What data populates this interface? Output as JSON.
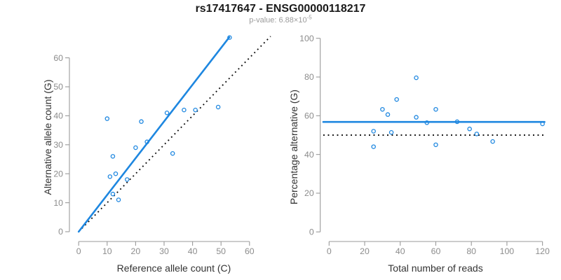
{
  "header": {
    "title": "rs17417647 - ENSG00000118217",
    "p_value_prefix": "p-value: ",
    "p_value_mantissa": "6.88×10",
    "p_value_exponent": "-5"
  },
  "colors": {
    "accent_blue": "#1E87E0",
    "dotted_black": "#111111",
    "axis_line": "#9A9A9A",
    "tick_label": "#8C8C8C",
    "axis_title": "#333333",
    "title_text": "#1A1A1A",
    "subtitle_text": "#9B9B9B",
    "background": "#FFFFFF"
  },
  "chart_data": [
    {
      "type": "scatter",
      "name": "allele-count-scatter",
      "xlabel": "Reference allele count (C)",
      "ylabel": "Alternative allele count (G)",
      "xlim": [
        0,
        60
      ],
      "ylim": [
        0,
        60
      ],
      "xticks": [
        0,
        10,
        20,
        30,
        40,
        50,
        60
      ],
      "yticks": [
        0,
        10,
        20,
        30,
        40,
        50,
        60
      ],
      "grid": false,
      "legend": "none",
      "points": [
        [
          10,
          39
        ],
        [
          11,
          19
        ],
        [
          12,
          13
        ],
        [
          12,
          26
        ],
        [
          13,
          20
        ],
        [
          14,
          11
        ],
        [
          17,
          18
        ],
        [
          20,
          29
        ],
        [
          22,
          38
        ],
        [
          24,
          31
        ],
        [
          31,
          41
        ],
        [
          33,
          27
        ],
        [
          37,
          42
        ],
        [
          41,
          42
        ],
        [
          49,
          43
        ],
        [
          53,
          67
        ]
      ],
      "lines": [
        {
          "name": "identity-line",
          "style": "dotted",
          "color_key": "dotted_black",
          "x1": 0,
          "y1": 0,
          "x2": 67.4,
          "y2": 67.4
        },
        {
          "name": "fit-line",
          "style": "solid",
          "color_key": "accent_blue",
          "x1": 0,
          "y1": 0,
          "x2": 52.9,
          "y2": 67.1
        }
      ]
    },
    {
      "type": "scatter",
      "name": "percentage-scatter",
      "xlabel": "Total number of reads",
      "ylabel": "Percentage alternative (G)",
      "xlim": [
        0,
        120
      ],
      "ylim": [
        0,
        100
      ],
      "xticks": [
        0,
        20,
        40,
        60,
        80,
        100,
        120
      ],
      "yticks": [
        0,
        20,
        40,
        60,
        80,
        100
      ],
      "grid": false,
      "legend": "none",
      "points": [
        [
          25,
          44
        ],
        [
          25,
          52
        ],
        [
          30,
          63.3
        ],
        [
          33,
          60.6
        ],
        [
          35,
          51.4
        ],
        [
          38,
          68.4
        ],
        [
          49,
          59.2
        ],
        [
          49,
          79.6
        ],
        [
          55,
          56.4
        ],
        [
          60,
          45
        ],
        [
          60,
          63.3
        ],
        [
          72,
          56.9
        ],
        [
          79,
          53.2
        ],
        [
          83,
          50.6
        ],
        [
          92,
          46.7
        ],
        [
          120,
          55.8
        ]
      ],
      "lines": [
        {
          "name": "reference-line",
          "style": "dotted",
          "color_key": "dotted_black",
          "y": 50
        },
        {
          "name": "mean-line",
          "style": "solid",
          "color_key": "accent_blue",
          "y": 56.8
        }
      ]
    }
  ]
}
